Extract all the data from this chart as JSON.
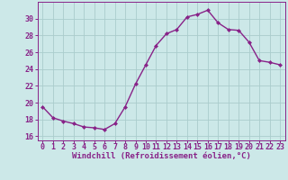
{
  "x": [
    0,
    1,
    2,
    3,
    4,
    5,
    6,
    7,
    8,
    9,
    10,
    11,
    12,
    13,
    14,
    15,
    16,
    17,
    18,
    19,
    20,
    21,
    22,
    23
  ],
  "y": [
    19.5,
    18.2,
    17.8,
    17.5,
    17.1,
    17.0,
    16.8,
    17.5,
    19.5,
    22.2,
    24.5,
    26.8,
    28.2,
    28.7,
    30.2,
    30.5,
    31.0,
    29.5,
    28.7,
    28.6,
    27.2,
    25.0,
    24.8,
    24.5
  ],
  "line_color": "#882288",
  "marker": "D",
  "marker_size": 2.0,
  "bg_color": "#cce8e8",
  "grid_color": "#aacccc",
  "xlabel": "Windchill (Refroidissement éolien,°C)",
  "ylim": [
    15.5,
    32.0
  ],
  "xlim": [
    -0.5,
    23.5
  ],
  "yticks": [
    16,
    18,
    20,
    22,
    24,
    26,
    28,
    30
  ],
  "xticks": [
    0,
    1,
    2,
    3,
    4,
    5,
    6,
    7,
    8,
    9,
    10,
    11,
    12,
    13,
    14,
    15,
    16,
    17,
    18,
    19,
    20,
    21,
    22,
    23
  ],
  "tick_color": "#882288",
  "label_fontsize": 6.5,
  "tick_fontsize": 6.0,
  "spine_color": "#882288",
  "linewidth": 1.0
}
